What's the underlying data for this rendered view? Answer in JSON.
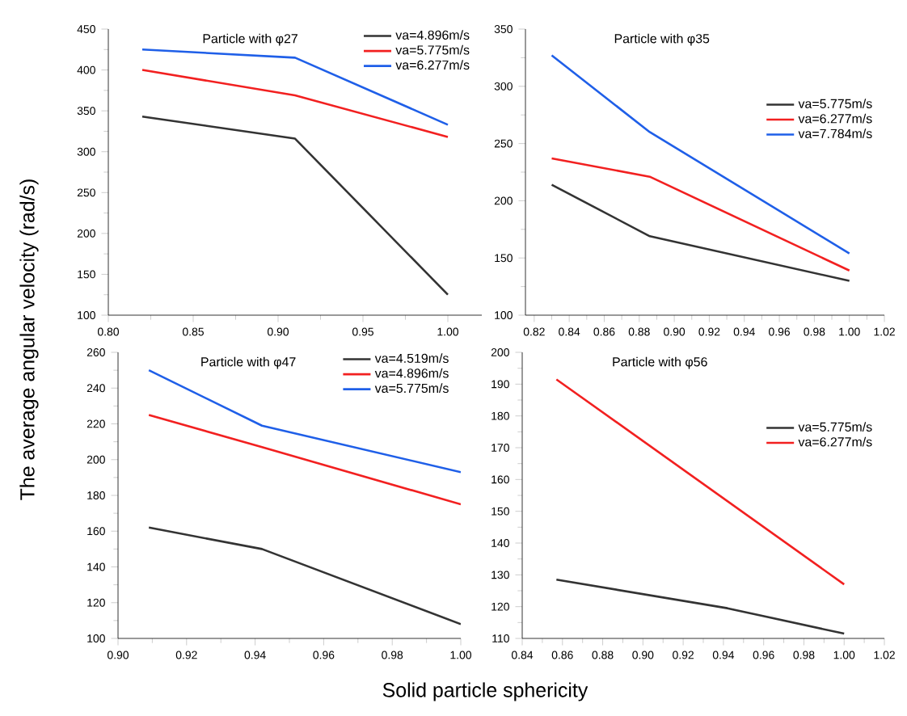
{
  "chart_data": [
    {
      "type": "line",
      "title": "Particle with φ27",
      "ylabel": "The average angular velocity (rad/s)",
      "xlim": [
        0.8,
        1.02
      ],
      "xticks": [
        {
          "value": 0.8,
          "label": "0.80"
        },
        {
          "value": 0.85,
          "label": "0.85"
        },
        {
          "value": 0.9,
          "label": "0.90"
        },
        {
          "value": 0.95,
          "label": "0.95"
        },
        {
          "value": 1.0,
          "label": "1.00"
        }
      ],
      "ylim": [
        100,
        450
      ],
      "yticks": [
        100,
        150,
        200,
        250,
        300,
        350,
        400,
        450
      ],
      "legend": "top right",
      "marker": "none",
      "line_style": "solid",
      "grid": false,
      "series": [
        {
          "name": "va=4.896m/s",
          "color": "#333333",
          "x": [
            0.82,
            0.91,
            1.0
          ],
          "values": [
            343,
            316,
            125
          ]
        },
        {
          "name": "va=5.775m/s",
          "color": "#f22020",
          "x": [
            0.82,
            0.91,
            1.0
          ],
          "values": [
            400,
            369,
            318
          ]
        },
        {
          "name": "va=6.277m/s",
          "color": "#1f5fe8",
          "x": [
            0.82,
            0.91,
            1.0
          ],
          "values": [
            425,
            415,
            333
          ]
        }
      ]
    },
    {
      "type": "line",
      "title": "Particle with φ35",
      "xlim": [
        0.815,
        1.02
      ],
      "xticks": [
        {
          "value": 0.82,
          "label": "0.82"
        },
        {
          "value": 0.84,
          "label": "0.84"
        },
        {
          "value": 0.86,
          "label": "0.86"
        },
        {
          "value": 0.88,
          "label": "0.88"
        },
        {
          "value": 0.9,
          "label": "0.90"
        },
        {
          "value": 0.92,
          "label": "0.92"
        },
        {
          "value": 0.94,
          "label": "0.94"
        },
        {
          "value": 0.96,
          "label": "0.96"
        },
        {
          "value": 0.98,
          "label": "0.98"
        },
        {
          "value": 1.0,
          "label": "1.00"
        },
        {
          "value": 1.02,
          "label": "1.02"
        }
      ],
      "ylim": [
        100,
        350
      ],
      "yticks": [
        100,
        150,
        200,
        250,
        300,
        350
      ],
      "legend": "right",
      "marker": "none",
      "line_style": "solid",
      "grid": false,
      "series": [
        {
          "name": "va=5.775m/s",
          "color": "#333333",
          "x": [
            0.83,
            0.886,
            1.0
          ],
          "values": [
            214,
            169,
            130
          ]
        },
        {
          "name": "va=6.277m/s",
          "color": "#f22020",
          "x": [
            0.83,
            0.886,
            1.0
          ],
          "values": [
            237,
            221,
            139
          ]
        },
        {
          "name": "va=7.784m/s",
          "color": "#1f5fe8",
          "x": [
            0.83,
            0.886,
            1.0
          ],
          "values": [
            327,
            260,
            154
          ]
        }
      ]
    },
    {
      "type": "line",
      "title": "Particle with φ47",
      "xlabel": "Solid particle sphericity",
      "xlim": [
        0.9,
        1.0
      ],
      "xticks": [
        {
          "value": 0.9,
          "label": "0.90"
        },
        {
          "value": 0.92,
          "label": "0.92"
        },
        {
          "value": 0.94,
          "label": "0.94"
        },
        {
          "value": 0.96,
          "label": "0.96"
        },
        {
          "value": 0.98,
          "label": "0.98"
        },
        {
          "value": 1.0,
          "label": "1.00"
        }
      ],
      "ylim": [
        100,
        260
      ],
      "yticks": [
        100,
        120,
        140,
        160,
        180,
        200,
        220,
        240,
        260
      ],
      "legend": "top right",
      "marker": "none",
      "line_style": "solid",
      "grid": false,
      "series": [
        {
          "name": "va=4.519m/s",
          "color": "#333333",
          "x": [
            0.909,
            0.942,
            1.0
          ],
          "values": [
            162,
            150,
            108
          ]
        },
        {
          "name": "va=4.896m/s",
          "color": "#f22020",
          "x": [
            0.909,
            0.942,
            1.0
          ],
          "values": [
            225,
            207,
            175
          ]
        },
        {
          "name": "va=5.775m/s",
          "color": "#1f5fe8",
          "x": [
            0.909,
            0.942,
            1.0
          ],
          "values": [
            250,
            219,
            193
          ]
        }
      ]
    },
    {
      "type": "line",
      "title": "Particle with φ56",
      "xlim": [
        0.84,
        1.02
      ],
      "xticks": [
        {
          "value": 0.84,
          "label": "0.84"
        },
        {
          "value": 0.86,
          "label": "0.86"
        },
        {
          "value": 0.88,
          "label": "0.88"
        },
        {
          "value": 0.9,
          "label": "0.90"
        },
        {
          "value": 0.92,
          "label": "0.92"
        },
        {
          "value": 0.94,
          "label": "0.94"
        },
        {
          "value": 0.96,
          "label": "0.96"
        },
        {
          "value": 0.98,
          "label": "0.98"
        },
        {
          "value": 1.0,
          "label": "1.00"
        },
        {
          "value": 1.02,
          "label": "1.02"
        }
      ],
      "ylim": [
        110,
        200
      ],
      "yticks": [
        110,
        120,
        130,
        140,
        150,
        160,
        170,
        180,
        190,
        200
      ],
      "legend": "right",
      "marker": "none",
      "line_style": "solid",
      "grid": false,
      "series": [
        {
          "name": "va=5.775m/s",
          "color": "#333333",
          "x": [
            0.857,
            0.942,
            1.0
          ],
          "values": [
            128.5,
            119.5,
            111.5
          ]
        },
        {
          "name": "va=6.277m/s",
          "color": "#f22020",
          "x": [
            0.857,
            1.0
          ],
          "values": [
            191.5,
            127
          ]
        }
      ]
    }
  ]
}
